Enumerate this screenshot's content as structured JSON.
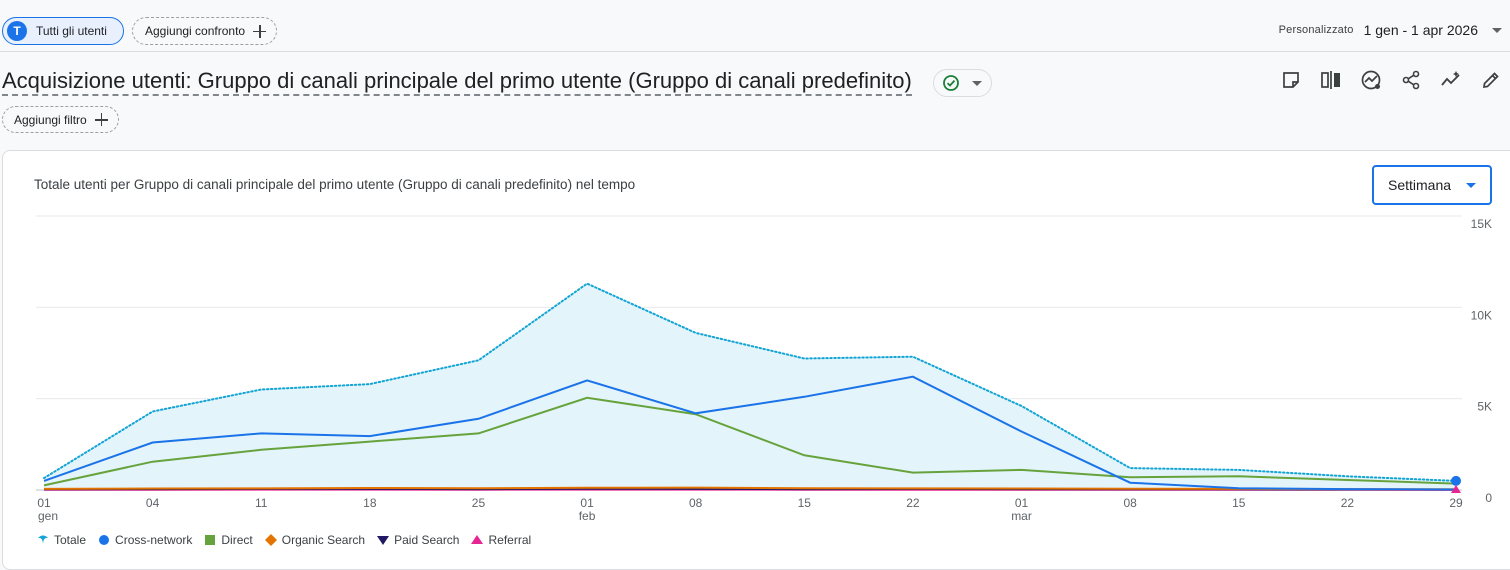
{
  "topbar": {
    "user_chip_avatar": "T",
    "user_chip_label": "Tutti gli utenti",
    "add_compare_label": "Aggiungi confronto",
    "date_custom_label": "Personalizzato",
    "date_range": "1 gen - 1 apr 2026"
  },
  "report": {
    "title": "Acquisizione utenti: Gruppo di canali principale del primo utente (Gruppo di canali predefinito)",
    "add_filter_label": "Aggiungi filtro",
    "toolbar_icons": [
      "note-icon",
      "compare-columns-icon",
      "insights-icon",
      "share-icon",
      "trend-icon",
      "edit-icon"
    ]
  },
  "card": {
    "title": "Totale utenti per Gruppo di canali principale del primo utente (Gruppo di canali predefinito) nel tempo",
    "granularity": "Settimana"
  },
  "chart_data": {
    "type": "line",
    "x": [
      "01 gen",
      "04",
      "11",
      "18",
      "25",
      "01 feb",
      "08",
      "15",
      "22",
      "01 mar",
      "08",
      "15",
      "22",
      "29"
    ],
    "x_ticks": [
      {
        "label": "01",
        "sub": "gen"
      },
      {
        "label": "04",
        "sub": ""
      },
      {
        "label": "11",
        "sub": ""
      },
      {
        "label": "18",
        "sub": ""
      },
      {
        "label": "25",
        "sub": ""
      },
      {
        "label": "01",
        "sub": "feb"
      },
      {
        "label": "08",
        "sub": ""
      },
      {
        "label": "15",
        "sub": ""
      },
      {
        "label": "22",
        "sub": ""
      },
      {
        "label": "01",
        "sub": "mar"
      },
      {
        "label": "08",
        "sub": ""
      },
      {
        "label": "15",
        "sub": ""
      },
      {
        "label": "22",
        "sub": ""
      },
      {
        "label": "29",
        "sub": ""
      }
    ],
    "ylim": [
      0,
      15000
    ],
    "y_ticks": [
      {
        "value": 0,
        "label": "0"
      },
      {
        "value": 5000,
        "label": "5K"
      },
      {
        "value": 10000,
        "label": "10K"
      },
      {
        "value": 15000,
        "label": "15K"
      }
    ],
    "grid": true,
    "legend_position": "bottom",
    "series": [
      {
        "name": "Totale",
        "color": "#12a4d4",
        "style": "dotted-area",
        "marker": "pin",
        "values": [
          650,
          4300,
          5500,
          5800,
          7100,
          11300,
          8600,
          7200,
          7300,
          4600,
          1200,
          1100,
          750,
          500
        ]
      },
      {
        "name": "Cross-network",
        "color": "#1a73e8",
        "style": "line",
        "marker": "circle",
        "values": [
          500,
          2600,
          3100,
          2950,
          3900,
          6000,
          4200,
          5100,
          6200,
          3200,
          400,
          100,
          50,
          30
        ]
      },
      {
        "name": "Direct",
        "color": "#67a33c",
        "style": "line",
        "marker": "square",
        "values": [
          250,
          1550,
          2200,
          2650,
          3100,
          5050,
          4150,
          1900,
          950,
          1100,
          700,
          750,
          550,
          350
        ]
      },
      {
        "name": "Organic Search",
        "color": "#e37400",
        "style": "line",
        "marker": "diamond",
        "values": [
          60,
          80,
          90,
          110,
          100,
          120,
          130,
          100,
          90,
          80,
          70,
          60,
          50,
          40
        ]
      },
      {
        "name": "Paid Search",
        "color": "#1f1a63",
        "style": "line",
        "marker": "triangle-down",
        "values": [
          40,
          50,
          60,
          60,
          50,
          70,
          60,
          50,
          60,
          50,
          40,
          40,
          30,
          20
        ]
      },
      {
        "name": "Referral",
        "color": "#e52592",
        "style": "line",
        "marker": "triangle-up",
        "values": [
          10,
          15,
          20,
          20,
          15,
          20,
          20,
          15,
          15,
          15,
          10,
          10,
          10,
          5
        ]
      }
    ]
  }
}
